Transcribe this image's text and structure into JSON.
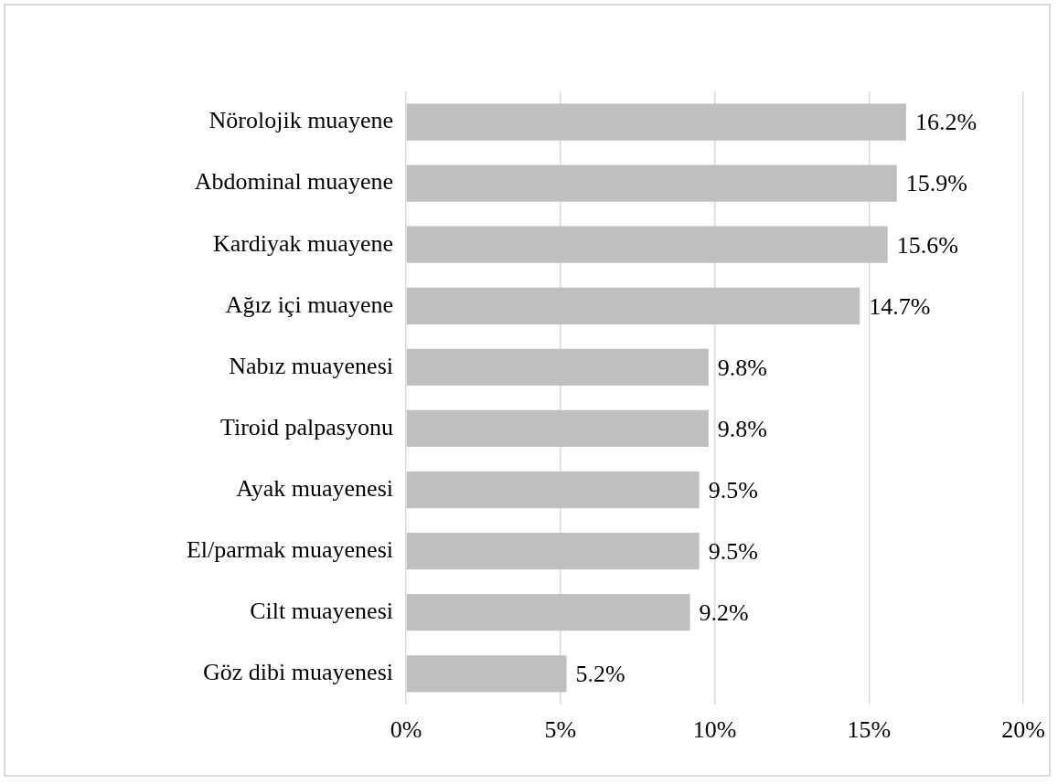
{
  "chart_data": {
    "type": "bar",
    "orientation": "horizontal",
    "categories": [
      "Nörolojik muayene",
      "Abdominal muayene",
      "Kardiyak muayene",
      "Ağız içi muayene",
      "Nabız muayenesi",
      "Tiroid palpasyonu",
      "Ayak muayenesi",
      "El/parmak muayenesi",
      "Cilt muayenesi",
      "Göz dibi muayenesi"
    ],
    "values": [
      16.2,
      15.9,
      15.6,
      14.7,
      9.8,
      9.8,
      9.5,
      9.5,
      9.2,
      5.2
    ],
    "value_labels": [
      "16.2%",
      "15.9%",
      "15.6%",
      "14.7%",
      "9.8%",
      "9.8%",
      "9.5%",
      "9.5%",
      "9.2%",
      "5.2%"
    ],
    "color": "#bfbfbf",
    "xlim": [
      0,
      20
    ],
    "xticks": [
      {
        "value": 0,
        "label": "0%"
      },
      {
        "value": 5,
        "label": "5%"
      },
      {
        "value": 10,
        "label": "10%"
      },
      {
        "value": 15,
        "label": "15%"
      },
      {
        "value": 20,
        "label": "20%"
      }
    ],
    "grid": "x",
    "legend": false
  }
}
